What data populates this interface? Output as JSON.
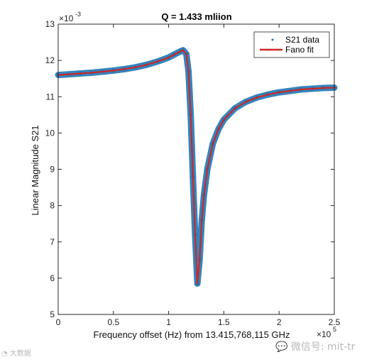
{
  "chart_data": {
    "type": "scatter",
    "title": "Q = 1.433 mliion",
    "xlabel": "Frequency offset (Hz) from 13.415,768,115 GHz",
    "ylabel": "Linear Magnitude S21",
    "x_multiplier": "×10^5",
    "y_multiplier": "×10^-3",
    "xlim": [
      0,
      2.5
    ],
    "ylim": [
      5,
      13
    ],
    "xticks": [
      "0",
      "0.5",
      "1",
      "1.5",
      "2",
      "2.5"
    ],
    "yticks": [
      "5",
      "6",
      "7",
      "8",
      "9",
      "10",
      "11",
      "12",
      "13"
    ],
    "grid": false,
    "legend_position": "top-right",
    "series": [
      {
        "name": "S21 data",
        "style": "points",
        "color": "#1f77b4",
        "x": [
          0,
          0.1,
          0.2,
          0.3,
          0.4,
          0.5,
          0.6,
          0.7,
          0.8,
          0.9,
          1.0,
          1.05,
          1.1,
          1.13,
          1.16,
          1.18,
          1.2,
          1.22,
          1.24,
          1.26,
          1.28,
          1.3,
          1.32,
          1.35,
          1.4,
          1.45,
          1.5,
          1.6,
          1.7,
          1.8,
          1.9,
          2.0,
          2.1,
          2.2,
          2.3,
          2.4,
          2.5
        ],
        "y": [
          11.6,
          11.62,
          11.64,
          11.66,
          11.69,
          11.72,
          11.76,
          11.81,
          11.88,
          11.97,
          12.08,
          12.16,
          12.24,
          12.28,
          12.18,
          11.7,
          10.5,
          8.8,
          7.2,
          5.85,
          6.5,
          7.6,
          8.3,
          9.0,
          9.7,
          10.1,
          10.37,
          10.68,
          10.86,
          10.98,
          11.06,
          11.12,
          11.16,
          11.2,
          11.22,
          11.24,
          11.25
        ]
      },
      {
        "name": "Fano fit",
        "style": "line",
        "color": "#cc2727",
        "x": [
          0,
          0.1,
          0.2,
          0.3,
          0.4,
          0.5,
          0.6,
          0.7,
          0.8,
          0.9,
          1.0,
          1.05,
          1.1,
          1.13,
          1.16,
          1.18,
          1.2,
          1.22,
          1.24,
          1.26,
          1.28,
          1.3,
          1.32,
          1.35,
          1.4,
          1.45,
          1.5,
          1.6,
          1.7,
          1.8,
          1.9,
          2.0,
          2.1,
          2.2,
          2.3,
          2.4,
          2.5
        ],
        "y": [
          11.6,
          11.62,
          11.64,
          11.66,
          11.69,
          11.72,
          11.76,
          11.81,
          11.88,
          11.97,
          12.08,
          12.16,
          12.24,
          12.28,
          12.18,
          11.7,
          10.5,
          8.8,
          7.2,
          5.85,
          6.5,
          7.6,
          8.3,
          9.0,
          9.7,
          10.1,
          10.37,
          10.68,
          10.86,
          10.98,
          11.06,
          11.12,
          11.16,
          11.2,
          11.22,
          11.24,
          11.25
        ]
      }
    ]
  },
  "watermarks": {
    "left": "大数据",
    "right": "微信号: mit-tr"
  }
}
